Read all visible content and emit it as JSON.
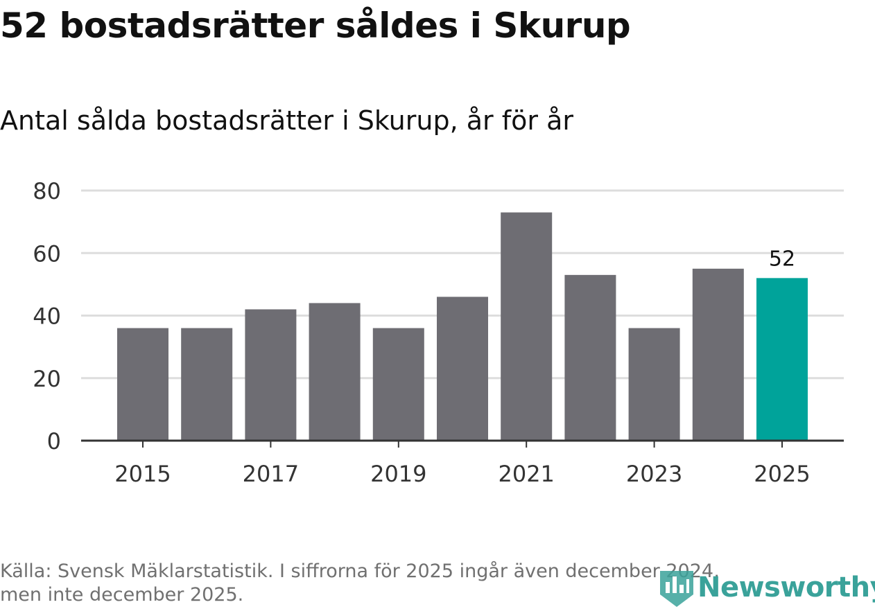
{
  "header": {
    "title": "52 bostadsrätter såldes i Skurup",
    "subtitle": "Antal sålda bostadsrätter i Skurup, år för år"
  },
  "footer": {
    "source_line1": "Källa: Svensk Mäklarstatistik. I siffrorna för 2025 ingår även december 2024,",
    "source_line2": "men inte december 2025.",
    "logo_text": "Newsworthy"
  },
  "colors": {
    "bar": "#6e6d73",
    "highlight": "#00a39a",
    "grid": "#dddddd",
    "axis": "#333333",
    "text": "#333333",
    "logo": "#3aa29a"
  },
  "chart_data": {
    "type": "bar",
    "title": "52 bostadsrätter såldes i Skurup",
    "subtitle": "Antal sålda bostadsrätter i Skurup, år för år",
    "xlabel": "",
    "ylabel": "",
    "categories": [
      "2015",
      "2016",
      "2017",
      "2018",
      "2019",
      "2020",
      "2021",
      "2022",
      "2023",
      "2024",
      "2025"
    ],
    "values": [
      36,
      36,
      42,
      44,
      36,
      46,
      73,
      53,
      36,
      55,
      52
    ],
    "x_tick_labels": [
      "2015",
      "2017",
      "2019",
      "2021",
      "2023",
      "2025"
    ],
    "y_ticks": [
      0,
      20,
      40,
      60,
      80
    ],
    "ylim": [
      0,
      80
    ],
    "grid": true,
    "highlight_category": "2025",
    "annotations": [
      {
        "category": "2025",
        "text": "52"
      }
    ]
  }
}
